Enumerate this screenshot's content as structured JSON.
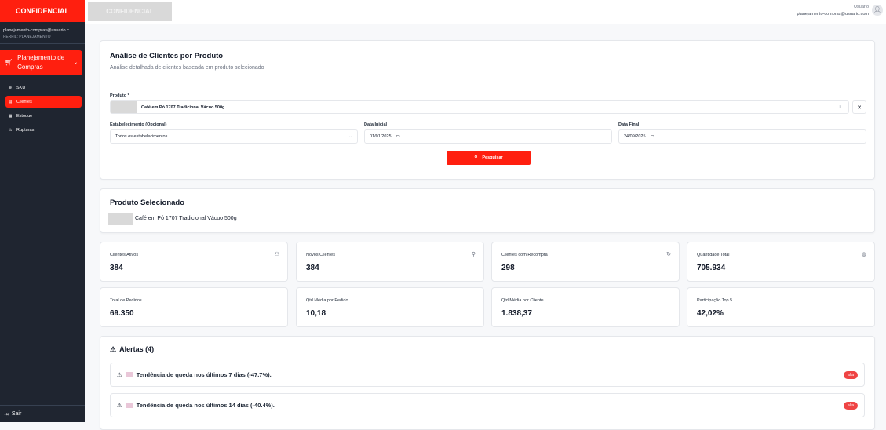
{
  "sidebar": {
    "brand": "CONFIDENCIAL",
    "email": "planejamento-compras@usuario.c...",
    "profile": "PERFIL: PLANEJAMENTO",
    "menu_label": "Planejamento de Compras",
    "items": [
      {
        "label": "SKU",
        "icon": "globe-icon"
      },
      {
        "label": "Clientes",
        "icon": "list-icon"
      },
      {
        "label": "Estoque",
        "icon": "box-icon"
      },
      {
        "label": "Rupturas",
        "icon": "warning-icon"
      }
    ],
    "logout": "Sair"
  },
  "topbar": {
    "confidential": "CONFIDENCIAL",
    "user_name": "Usuário",
    "user_email": "planejamento-compras@usuario.com"
  },
  "form": {
    "title": "Análise de Clientes por Produto",
    "subtitle": "Análise detalhada de clientes baseada em produto selecionado",
    "product_label": "Produto *",
    "product_value": "Café em Pó 1707 Tradicional Vácuo 500g",
    "establishment_label": "Estabelecimento (Opcional)",
    "establishment_value": "Todos os estabelecimentos",
    "start_label": "Data Inicial",
    "start_value": "01/01/2025",
    "end_label": "Data Final",
    "end_value": "24/09/2025",
    "search_label": "Pesquisar"
  },
  "selected": {
    "title": "Produto Selecionado",
    "product": "Café em Pó 1707 Tradicional Vácuo 500g"
  },
  "stats": [
    {
      "label": "Clientes Ativos",
      "value": "384",
      "icon": "users-icon"
    },
    {
      "label": "Novos Clientes",
      "value": "384",
      "icon": "user-plus-icon"
    },
    {
      "label": "Clientes com Recompra",
      "value": "298",
      "icon": "refresh-icon"
    },
    {
      "label": "Quantidade Total",
      "value": "705.934",
      "icon": "package-icon"
    },
    {
      "label": "Total de Pedidos",
      "value": "69.350"
    },
    {
      "label": "Qtd Média por Pedido",
      "value": "10,18"
    },
    {
      "label": "Qtd Média por Cliente",
      "value": "1.838,37"
    },
    {
      "label": "Participação Top 5",
      "value": "42,02%"
    }
  ],
  "alerts": {
    "title": "Alertas (4)",
    "items": [
      {
        "text": "Tendência de queda nos últimos 7 dias (-47.7%).",
        "badge": "alta"
      },
      {
        "text": "Tendência de queda nos últimos 14 dias (-40.4%).",
        "badge": "alta"
      }
    ]
  },
  "colors": {
    "brand": "#ff1f0f",
    "sidebar": "#1f2530",
    "badge": "#ef4444"
  }
}
